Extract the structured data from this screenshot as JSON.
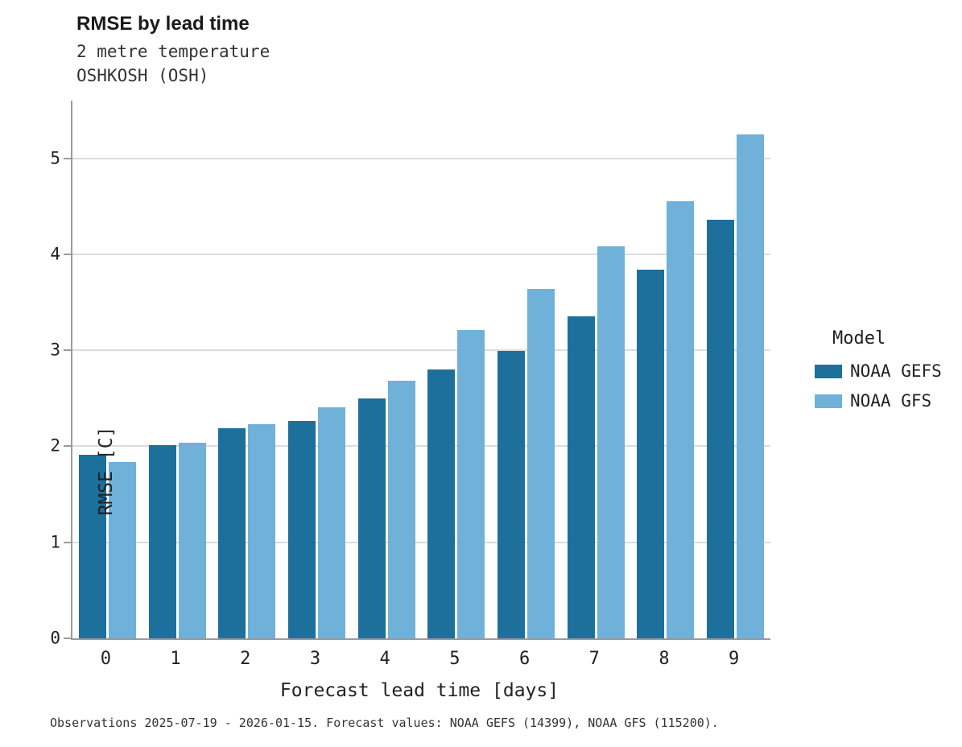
{
  "chart_data": {
    "type": "bar",
    "title": "RMSE by lead time",
    "subtitle": "2 metre temperature",
    "subtitle2": "OSHKOSH (OSH)",
    "xlabel": "Forecast lead time [days]",
    "ylabel": "RMSE [C]",
    "ylim": [
      0,
      5.6
    ],
    "yticks": [
      0,
      1,
      2,
      3,
      4,
      5
    ],
    "grid": "horizontal",
    "legend_title": "Model",
    "legend_position": "right",
    "categories": [
      "0",
      "1",
      "2",
      "3",
      "4",
      "5",
      "6",
      "7",
      "8",
      "9"
    ],
    "series": [
      {
        "name": "NOAA GEFS",
        "color": "#1d6f9c",
        "values": [
          1.91,
          2.01,
          2.19,
          2.26,
          2.5,
          2.8,
          2.99,
          3.35,
          3.84,
          4.36
        ]
      },
      {
        "name": "NOAA GFS",
        "color": "#6fb1d8",
        "values": [
          1.84,
          2.04,
          2.23,
          2.41,
          2.68,
          3.21,
          3.64,
          4.08,
          4.55,
          5.25
        ]
      }
    ],
    "caption": "Observations 2025-07-19 - 2026-01-15. Forecast values: NOAA GEFS (14399), NOAA GFS (115200)."
  }
}
